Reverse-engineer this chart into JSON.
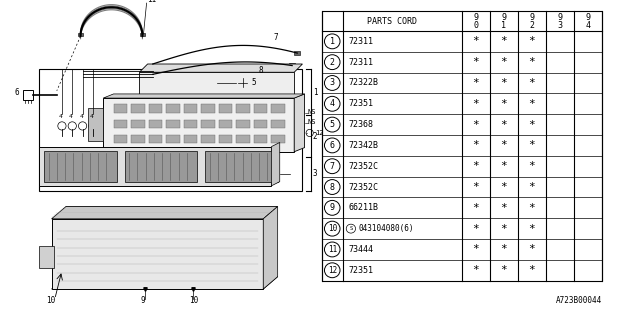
{
  "bg_color": "#ffffff",
  "diagram_label": "A723B00044",
  "table": {
    "rows": [
      [
        "1",
        "72311"
      ],
      [
        "2",
        "72311"
      ],
      [
        "3",
        "72322B"
      ],
      [
        "4",
        "72351"
      ],
      [
        "5",
        "72368"
      ],
      [
        "6",
        "72342B"
      ],
      [
        "7",
        "72352C"
      ],
      [
        "8",
        "72352C"
      ],
      [
        "9",
        "66211B"
      ],
      [
        "10",
        "043104080(6)",
        "S"
      ],
      [
        "11",
        "73444"
      ],
      [
        "12",
        "72351"
      ]
    ],
    "stars_cols": [
      0,
      1,
      2
    ],
    "year_headers": [
      [
        "9",
        "0"
      ],
      [
        "9",
        "1"
      ],
      [
        "9",
        "2"
      ],
      [
        "9",
        "3"
      ],
      [
        "9",
        "4"
      ]
    ]
  },
  "line_color": "#000000",
  "font_size": 6.0
}
